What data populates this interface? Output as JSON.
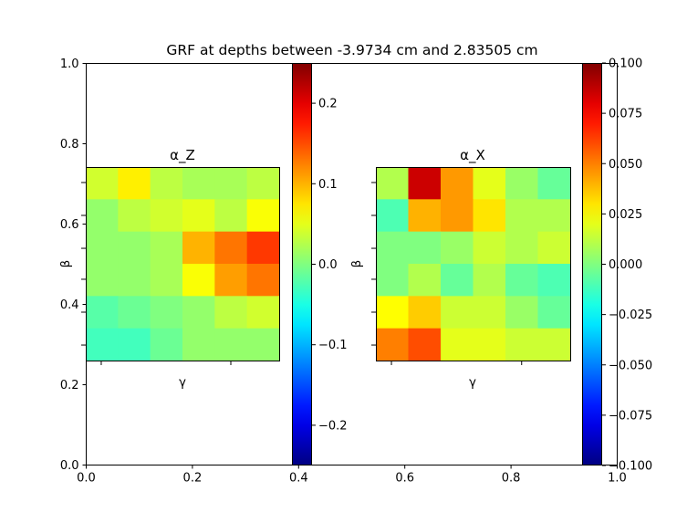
{
  "chart_data": {
    "type": "heatmap",
    "title": "GRF at depths between -3.9734 cm and 2.83505 cm",
    "colormap": "jet",
    "outer_axes": {
      "xlim": [
        0,
        1
      ],
      "ylim": [
        0,
        1
      ],
      "xticks": [
        "0.0",
        "0.2",
        "0.4",
        "0.6",
        "0.8",
        "1.0"
      ],
      "yticks": [
        "0.0",
        "0.2",
        "0.4",
        "0.6",
        "0.8",
        "1.0"
      ]
    },
    "panels": [
      {
        "title": "α_Z",
        "xlabel": "γ",
        "ylabel": "β",
        "colorbar": {
          "min": -0.25,
          "max": 0.25,
          "ticks": [
            -0.2,
            -0.1,
            0.0,
            0.1,
            0.2
          ],
          "tick_labels": [
            "−0.2",
            "−0.1",
            "0.0",
            "0.1",
            "0.2"
          ]
        },
        "grid": [
          [
            0.04,
            0.07,
            0.03,
            0.02,
            0.02,
            0.03
          ],
          [
            0.01,
            0.03,
            0.04,
            0.05,
            0.03,
            0.06
          ],
          [
            0.01,
            0.01,
            0.02,
            0.1,
            0.13,
            0.16
          ],
          [
            0.01,
            0.01,
            0.02,
            0.06,
            0.11,
            0.13
          ],
          [
            -0.02,
            -0.01,
            0.0,
            0.01,
            0.03,
            0.04
          ],
          [
            -0.03,
            -0.03,
            -0.01,
            0.01,
            0.01,
            0.01
          ]
        ]
      },
      {
        "title": "α_X",
        "xlabel": "γ",
        "ylabel": "β",
        "colorbar": {
          "min": -0.1,
          "max": 0.1,
          "ticks": [
            -0.1,
            -0.075,
            -0.05,
            -0.025,
            0.0,
            0.025,
            0.05,
            0.075,
            0.1
          ],
          "tick_labels": [
            "−0.100",
            "−0.075",
            "−0.050",
            "−0.025",
            "0.000",
            "0.025",
            "0.050",
            "0.075",
            "0.100"
          ]
        },
        "grid": [
          [
            0.01,
            0.085,
            0.045,
            0.02,
            0.005,
            -0.005
          ],
          [
            -0.01,
            0.04,
            0.045,
            0.03,
            0.01,
            0.01
          ],
          [
            0.0,
            0.0,
            0.005,
            0.015,
            0.01,
            0.015
          ],
          [
            0.0,
            0.01,
            -0.005,
            0.01,
            -0.005,
            -0.01
          ],
          [
            0.025,
            0.035,
            0.015,
            0.015,
            0.005,
            -0.005
          ],
          [
            0.05,
            0.06,
            0.02,
            0.02,
            0.015,
            0.015
          ]
        ]
      }
    ]
  }
}
